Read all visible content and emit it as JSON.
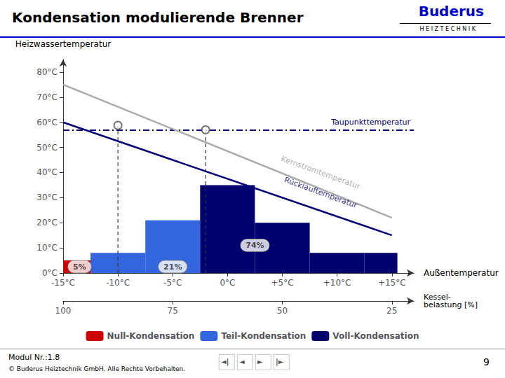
{
  "chart_data": {
    "type": "bar",
    "title": "Kondensation modulierende Brenner",
    "xlabel": "Außentemperatur",
    "ylabel": "Heizwassertemperatur",
    "xlim": [
      -15,
      17
    ],
    "ylim": [
      0,
      85
    ],
    "xticks": [
      {
        "value": -15,
        "label": "-15°C"
      },
      {
        "value": -10,
        "label": "-10°C"
      },
      {
        "value": -5,
        "label": "-5°C"
      },
      {
        "value": 0,
        "label": "0°C"
      },
      {
        "value": 5,
        "label": "+5°C"
      },
      {
        "value": 10,
        "label": "+10°C"
      },
      {
        "value": 15,
        "label": "+15°C"
      }
    ],
    "yticks": [
      {
        "value": 0,
        "label": "0°C"
      },
      {
        "value": 10,
        "label": "10°C"
      },
      {
        "value": 20,
        "label": "20°C"
      },
      {
        "value": 30,
        "label": "30°C"
      },
      {
        "value": 40,
        "label": "40°C"
      },
      {
        "value": 50,
        "label": "50°C"
      },
      {
        "value": 60,
        "label": "60°C"
      },
      {
        "value": 70,
        "label": "70°C"
      },
      {
        "value": 80,
        "label": "80°C"
      }
    ],
    "x2label": "Kessel-\nbelastung [%]",
    "x2lim": [
      -15,
      17
    ],
    "x2ticks": [
      {
        "value": -15,
        "label": "100"
      },
      {
        "value": -5,
        "label": "75"
      },
      {
        "value": 5,
        "label": "50"
      },
      {
        "value": 15,
        "label": "25"
      }
    ],
    "grid": false,
    "legend": "bottom",
    "series": [
      {
        "name": "Null-Kondensation",
        "type": "bar",
        "color": "#cc0000",
        "bins": [
          -15,
          -12.5
        ],
        "values": [
          5
        ]
      },
      {
        "name": "Teil-Kondensation",
        "type": "bar",
        "color": "#3366dd",
        "bins": [
          -12.5,
          -7.5,
          -2.5
        ],
        "values": [
          8,
          21
        ]
      },
      {
        "name": "Voll-Kondensation",
        "type": "bar",
        "color": "#00006e",
        "bins": [
          -2.5,
          2.5,
          7.5,
          12.5,
          15.5
        ],
        "values": [
          35,
          20,
          8,
          8
        ]
      },
      {
        "type": "line",
        "color": "#aaaaaa",
        "x": [
          -15,
          15
        ],
        "values": [
          75,
          22
        ]
      },
      {
        "type": "line",
        "color": "#00007a",
        "x": [
          -15,
          15
        ],
        "values": [
          60,
          15
        ]
      },
      {
        "type": "line",
        "color": "#333333",
        "line_style": "dashed",
        "x": [
          -10,
          -10
        ],
        "values": [
          0,
          58.75
        ]
      },
      {
        "type": "line",
        "color": "#333333",
        "line_style": "dashed",
        "x": [
          -2,
          -2
        ],
        "values": [
          0,
          57.0
        ]
      },
      {
        "type": "scatter",
        "color": "#555555",
        "marker": "circle",
        "x": [
          -10,
          -2
        ],
        "values": [
          58.75,
          57.0
        ]
      }
    ],
    "hlines": [
      {
        "y": 57.0,
        "label": "Taupunkttemperatur",
        "color": "#00007a",
        "line_style": "dashdot"
      }
    ],
    "annotations": [
      {
        "text": "Kernstromtemperatur",
        "x": 8.5,
        "y": 40,
        "color": "#999999"
      },
      {
        "text": "Rücklauftemperatur",
        "x": 8.5,
        "y": 32,
        "color": "#00007a"
      },
      {
        "text": "5%",
        "x": -13.5,
        "y": 2.5,
        "marker": "ellipse"
      },
      {
        "text": "21%",
        "x": -5.0,
        "y": 2.5,
        "marker": "ellipse"
      },
      {
        "text": "74%",
        "x": 2.5,
        "y": 11,
        "marker": "ellipse"
      }
    ],
    "logo": {
      "text": "Buderus",
      "subtext": "H E I Z T E C H N I K",
      "color": "#0000cc"
    },
    "footer": {
      "lines": [
        "Modul Nr.:1.8",
        "© Buderus Heiztechnik GmbH. Alle Rechte Vorbehalten."
      ],
      "page": "9",
      "nav": [
        "◄|",
        "◄",
        "►",
        "|►"
      ]
    }
  }
}
